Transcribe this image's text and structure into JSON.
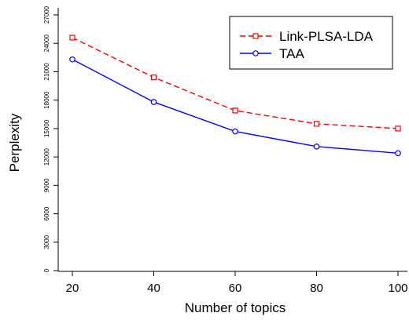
{
  "chart_data": {
    "type": "line",
    "xlabel": "Number of topics",
    "ylabel": "Perplexity",
    "x": [
      20,
      40,
      60,
      80,
      100
    ],
    "x_ticks": [
      "20",
      "40",
      "60",
      "80",
      "100"
    ],
    "y_ticks": [
      "0",
      "3000",
      "6000",
      "9000",
      "12000",
      "15000",
      "18000",
      "21000",
      "24000",
      "27000"
    ],
    "y_tick_values": [
      0,
      3000,
      6000,
      9000,
      12000,
      15000,
      18000,
      21000,
      24000,
      27000
    ],
    "xlim": [
      20,
      100
    ],
    "ylim": [
      0,
      27000
    ],
    "grid": false,
    "legend_position": "top-right",
    "series": [
      {
        "name": "Link-PLSA-LDA",
        "values": [
          24600,
          20400,
          16900,
          15500,
          15000
        ],
        "color": "#ff0000",
        "dash": "dashed",
        "marker": "square"
      },
      {
        "name": "TAA",
        "values": [
          22300,
          17800,
          14700,
          13100,
          12400
        ],
        "color": "#0000ff",
        "dash": "solid",
        "marker": "circle"
      }
    ]
  }
}
